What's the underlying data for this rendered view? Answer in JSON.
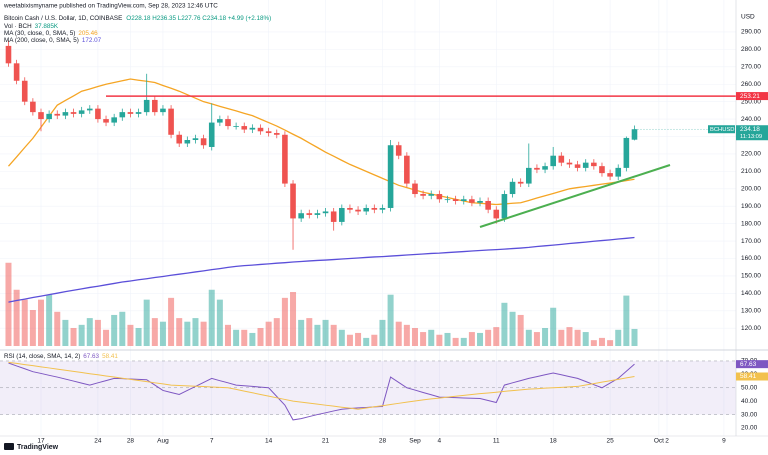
{
  "header": {
    "published": "weetabixismyname published on TradingView.com, Sep 28, 2023 12:46 UTC",
    "symbol": "Bitcoin Cash / U.S. Dollar, 1D, COINBASE",
    "ohlc": "O228.18 H236.35 L227.76 C234.18 +4.99 (+2.18%)",
    "footer": "TradingView"
  },
  "chart_data": {
    "type": "candlestick",
    "categories": [
      null,
      null,
      null,
      null,
      "17",
      null,
      null,
      null,
      null,
      null,
      null,
      "24",
      null,
      null,
      null,
      "28",
      null,
      null,
      null,
      "Aug",
      null,
      null,
      null,
      null,
      null,
      "7",
      null,
      null,
      null,
      null,
      null,
      null,
      "14",
      null,
      null,
      null,
      null,
      null,
      null,
      "21",
      null,
      null,
      null,
      null,
      null,
      null,
      "28",
      null,
      null,
      null,
      "Sep",
      null,
      null,
      "4",
      null,
      null,
      null,
      null,
      null,
      null,
      "11",
      null,
      null,
      null,
      null,
      null,
      null,
      "18",
      null,
      null,
      null,
      null,
      null,
      null,
      "25",
      null,
      null,
      null,
      null,
      null,
      "Oct",
      "2",
      null,
      null,
      null,
      null,
      null,
      null,
      "9",
      null
    ],
    "open": [
      282,
      272,
      262,
      250,
      244,
      240,
      243,
      242,
      244,
      243,
      245,
      246,
      240,
      238,
      241,
      244,
      243,
      244,
      251,
      244,
      246,
      231,
      226,
      228,
      229,
      224,
      238,
      240,
      236,
      236,
      234,
      235,
      233,
      232,
      231,
      203,
      183,
      186,
      185,
      186,
      187,
      181,
      189,
      188,
      187,
      189,
      188,
      189,
      225,
      219,
      203,
      197,
      196,
      197,
      194,
      194,
      193,
      194,
      192,
      193,
      188,
      183,
      197,
      204,
      203,
      212,
      211,
      213,
      219,
      215,
      214,
      212,
      215,
      213,
      209,
      207,
      212,
      228.18,
      null,
      null,
      null,
      null,
      null,
      null,
      null,
      null,
      null,
      null,
      null,
      null
    ],
    "high": [
      285,
      274,
      264,
      252,
      246,
      245,
      245,
      246,
      246,
      247,
      248,
      248,
      242,
      243,
      246,
      246,
      246,
      266,
      253,
      248,
      248,
      233,
      230,
      231,
      231,
      249,
      242,
      242,
      238,
      238,
      237,
      237,
      235,
      234,
      233,
      205,
      188,
      188,
      188,
      189,
      189,
      191,
      191,
      190,
      191,
      191,
      191,
      228,
      227,
      221,
      205,
      199,
      199,
      199,
      196,
      196,
      196,
      196,
      195,
      195,
      190,
      199,
      206,
      206,
      226,
      214,
      215,
      224,
      221,
      217,
      216,
      217,
      217,
      215,
      211,
      214,
      230,
      236.35,
      null,
      null,
      null,
      null,
      null,
      null,
      null,
      null,
      null,
      null,
      null,
      null
    ],
    "low": [
      270,
      260,
      248,
      242,
      233,
      238,
      240,
      240,
      241,
      241,
      243,
      238,
      236,
      236,
      239,
      241,
      241,
      242,
      242,
      242,
      229,
      224,
      224,
      226,
      223,
      222,
      236,
      234,
      234,
      232,
      232,
      231,
      230,
      229,
      201,
      165,
      181,
      183,
      183,
      184,
      176,
      179,
      186,
      185,
      185,
      186,
      186,
      187,
      217,
      201,
      195,
      194,
      194,
      192,
      192,
      191,
      191,
      190,
      190,
      186,
      180,
      181,
      195,
      201,
      201,
      209,
      209,
      211,
      213,
      212,
      210,
      210,
      211,
      207,
      205,
      205,
      210,
      227.76,
      null,
      null,
      null,
      null,
      null,
      null,
      null,
      null,
      null,
      null,
      null,
      null
    ],
    "close": [
      272,
      262,
      250,
      244,
      240,
      243,
      242,
      244,
      243,
      245,
      246,
      240,
      238,
      241,
      244,
      243,
      244,
      251,
      244,
      246,
      231,
      226,
      228,
      229,
      225,
      238,
      240,
      236,
      236,
      234,
      235,
      233,
      232,
      231,
      203,
      183,
      186,
      185,
      186,
      187,
      181,
      189,
      188,
      187,
      189,
      188,
      189,
      225,
      219,
      203,
      197,
      196,
      197,
      194,
      194,
      193,
      194,
      192,
      193,
      188,
      183,
      197,
      204,
      203,
      212,
      211,
      213,
      219,
      215,
      214,
      212,
      215,
      213,
      209,
      207,
      212,
      229.19,
      234.18,
      null,
      null,
      null,
      null,
      null,
      null,
      null,
      null,
      null,
      null,
      null,
      null
    ],
    "up_color": "#26a69a",
    "down_color": "#ef5350",
    "volume": {
      "name": "Vol · BCH",
      "last_label": "37.885K",
      "values": [
        185,
        125,
        103,
        80,
        103,
        114,
        76,
        58,
        40,
        47,
        62,
        58,
        36,
        69,
        76,
        47,
        40,
        103,
        62,
        54,
        107,
        62,
        54,
        62,
        54,
        125,
        103,
        47,
        36,
        36,
        29,
        40,
        54,
        62,
        107,
        120,
        58,
        62,
        47,
        58,
        47,
        36,
        25,
        29,
        18,
        25,
        58,
        114,
        54,
        47,
        40,
        31,
        36,
        25,
        29,
        18,
        18,
        31,
        29,
        36,
        42,
        96,
        76,
        69,
        36,
        31,
        40,
        85,
        36,
        42,
        36,
        31,
        13,
        18,
        13,
        36,
        112,
        37.885,
        null,
        null,
        null,
        null,
        null,
        null,
        null,
        null,
        null,
        null,
        null,
        null
      ]
    },
    "series": [
      {
        "name": "MA (30, close, 0, SMA, 5)",
        "color": "#f5a524",
        "values": [
          213,
          218.3,
          223.7,
          229,
          235.3,
          241.7,
          248,
          250.7,
          253.3,
          256,
          257.3,
          258.7,
          260,
          261,
          262,
          263,
          262.3,
          261.7,
          261,
          259.3,
          257.7,
          256,
          254,
          252,
          250,
          248.7,
          247.3,
          246,
          244.7,
          243.3,
          242,
          240,
          238,
          236,
          233.7,
          231.3,
          229,
          226.3,
          223.7,
          221,
          218.7,
          216.3,
          214,
          212,
          210,
          208,
          206,
          204,
          202,
          200.7,
          199.3,
          198,
          197,
          196,
          195,
          194,
          193,
          192,
          191.7,
          191.3,
          191,
          191.3,
          191.7,
          192,
          193.3,
          194.7,
          196,
          197.3,
          198.7,
          200,
          200.7,
          201.3,
          202,
          202.7,
          203.3,
          204,
          204.7,
          205.46,
          null,
          null,
          null,
          null,
          null,
          null,
          null,
          null,
          null,
          null,
          null,
          null
        ]
      },
      {
        "name": "MA (200, close, 0, SMA, 5)",
        "color": "#5b4fd9",
        "values": [
          135,
          135.9,
          136.7,
          137.6,
          138.4,
          139.3,
          140.1,
          141,
          141.8,
          142.6,
          143.4,
          144.1,
          144.9,
          145.7,
          146.5,
          147.1,
          147.8,
          148.4,
          149.1,
          149.7,
          150.4,
          151,
          151.6,
          152.3,
          152.9,
          153.6,
          154.2,
          154.9,
          155.5,
          155.9,
          156.2,
          156.6,
          156.9,
          157.3,
          157.6,
          158,
          158.3,
          158.6,
          158.9,
          159.1,
          159.4,
          159.7,
          160,
          160.3,
          160.6,
          160.9,
          161.1,
          161.4,
          161.7,
          162,
          162.3,
          162.6,
          162.9,
          163.1,
          163.4,
          163.7,
          164,
          164.3,
          164.6,
          164.9,
          165.1,
          165.4,
          165.7,
          166,
          166.4,
          166.9,
          167.3,
          167.7,
          168.1,
          168.6,
          169,
          169.4,
          169.9,
          170.3,
          170.7,
          171.2,
          171.6,
          172.07,
          null,
          null,
          null,
          null,
          null,
          null,
          null,
          null,
          null,
          null,
          null,
          null
        ]
      }
    ],
    "ylim": [
      107.5,
      302.6
    ],
    "y_unit": "USD",
    "yticks": [
      {
        "value": 290,
        "label": "290.00"
      },
      {
        "value": 280,
        "label": "280.00"
      },
      {
        "value": 270,
        "label": "270.00"
      },
      {
        "value": 260,
        "label": "260.00"
      },
      {
        "value": 250,
        "label": "250.00"
      },
      {
        "value": 240,
        "label": "240.00"
      },
      {
        "value": 230,
        "label": "230.00"
      },
      {
        "value": 220,
        "label": "220.00"
      },
      {
        "value": 210,
        "label": "210.00"
      },
      {
        "value": 200,
        "label": "200.00"
      },
      {
        "value": 190,
        "label": "190.00"
      },
      {
        "value": 180,
        "label": "180.00"
      },
      {
        "value": 170,
        "label": "170.00"
      },
      {
        "value": 160,
        "label": "160.00"
      },
      {
        "value": 150,
        "label": "150.00"
      },
      {
        "value": 140,
        "label": "140.00"
      },
      {
        "value": 130,
        "label": "130.00"
      },
      {
        "value": 120,
        "label": "120.00"
      }
    ],
    "grid": true,
    "hlines": [
      {
        "value": 253.21,
        "color": "#f23645"
      }
    ],
    "last_price": {
      "symbol": "BCHUSD",
      "countdown": "11:13:09"
    },
    "rsi": {
      "name": "RSI (14, close, SMA, 14, 2)",
      "ylim": [
        14,
        76.7
      ],
      "levels": [
        70,
        50,
        30
      ],
      "yticks": [
        {
          "value": 70,
          "label": "70.00"
        },
        {
          "value": 60,
          "label": "60.00"
        },
        {
          "value": 50,
          "label": "50.00"
        },
        {
          "value": 40,
          "label": "40.00"
        },
        {
          "value": 30,
          "label": "30.00"
        },
        {
          "value": 20,
          "label": "20.00"
        }
      ],
      "series": [
        {
          "name": "RSI",
          "color": "#7e57c2",
          "values": [
            68.5,
            66.3,
            64.2,
            62,
            60.7,
            59.3,
            58,
            56.5,
            55,
            53.5,
            52,
            53.7,
            55.3,
            57,
            56.8,
            56.5,
            56.3,
            56,
            52,
            48,
            46.5,
            45,
            48,
            51,
            54,
            57,
            55.3,
            53.7,
            52,
            51.5,
            51,
            50.5,
            50,
            43.5,
            37,
            26,
            27,
            28.5,
            30,
            31.3,
            32.7,
            34,
            34.5,
            35,
            35.3,
            35.7,
            36,
            58,
            54,
            50,
            48.3,
            46.5,
            44.8,
            43,
            42.8,
            42.6,
            42.4,
            42.2,
            42,
            40.5,
            39,
            52,
            53.7,
            55.3,
            57,
            58.3,
            59.7,
            61,
            59.7,
            58.3,
            57,
            54.7,
            52.3,
            50,
            53.5,
            57,
            62.3,
            67.63,
            null,
            null,
            null,
            null,
            null,
            null,
            null,
            null,
            null,
            null,
            null,
            null
          ]
        },
        {
          "name": "RSI-based MA",
          "color": "#f2c14e",
          "values": [
            69,
            68.2,
            67.3,
            66.5,
            65.6,
            64.8,
            63.9,
            63.1,
            62.2,
            61.4,
            60.5,
            59.7,
            58.8,
            58,
            57.1,
            56.3,
            55.4,
            54.6,
            53.7,
            52.9,
            52,
            51.7,
            51.4,
            51.1,
            50.9,
            50.6,
            50.3,
            50,
            48.8,
            47.5,
            46.3,
            45,
            43.8,
            42.5,
            41.3,
            40,
            39.3,
            38.5,
            37.8,
            37,
            36.3,
            35.5,
            34.8,
            34,
            34.9,
            35.8,
            36.6,
            37.5,
            38.4,
            39.3,
            40.1,
            41,
            41.7,
            42.3,
            43,
            43.7,
            44.3,
            45,
            45.6,
            46.1,
            46.7,
            47.3,
            47.9,
            48.4,
            49,
            49.3,
            49.7,
            50,
            50.3,
            50.7,
            51,
            52.1,
            53.1,
            54.2,
            55.2,
            56.3,
            57.4,
            58.41,
            null,
            null,
            null,
            null,
            null,
            null,
            null,
            null,
            null,
            null,
            null,
            null
          ]
        }
      ]
    }
  }
}
